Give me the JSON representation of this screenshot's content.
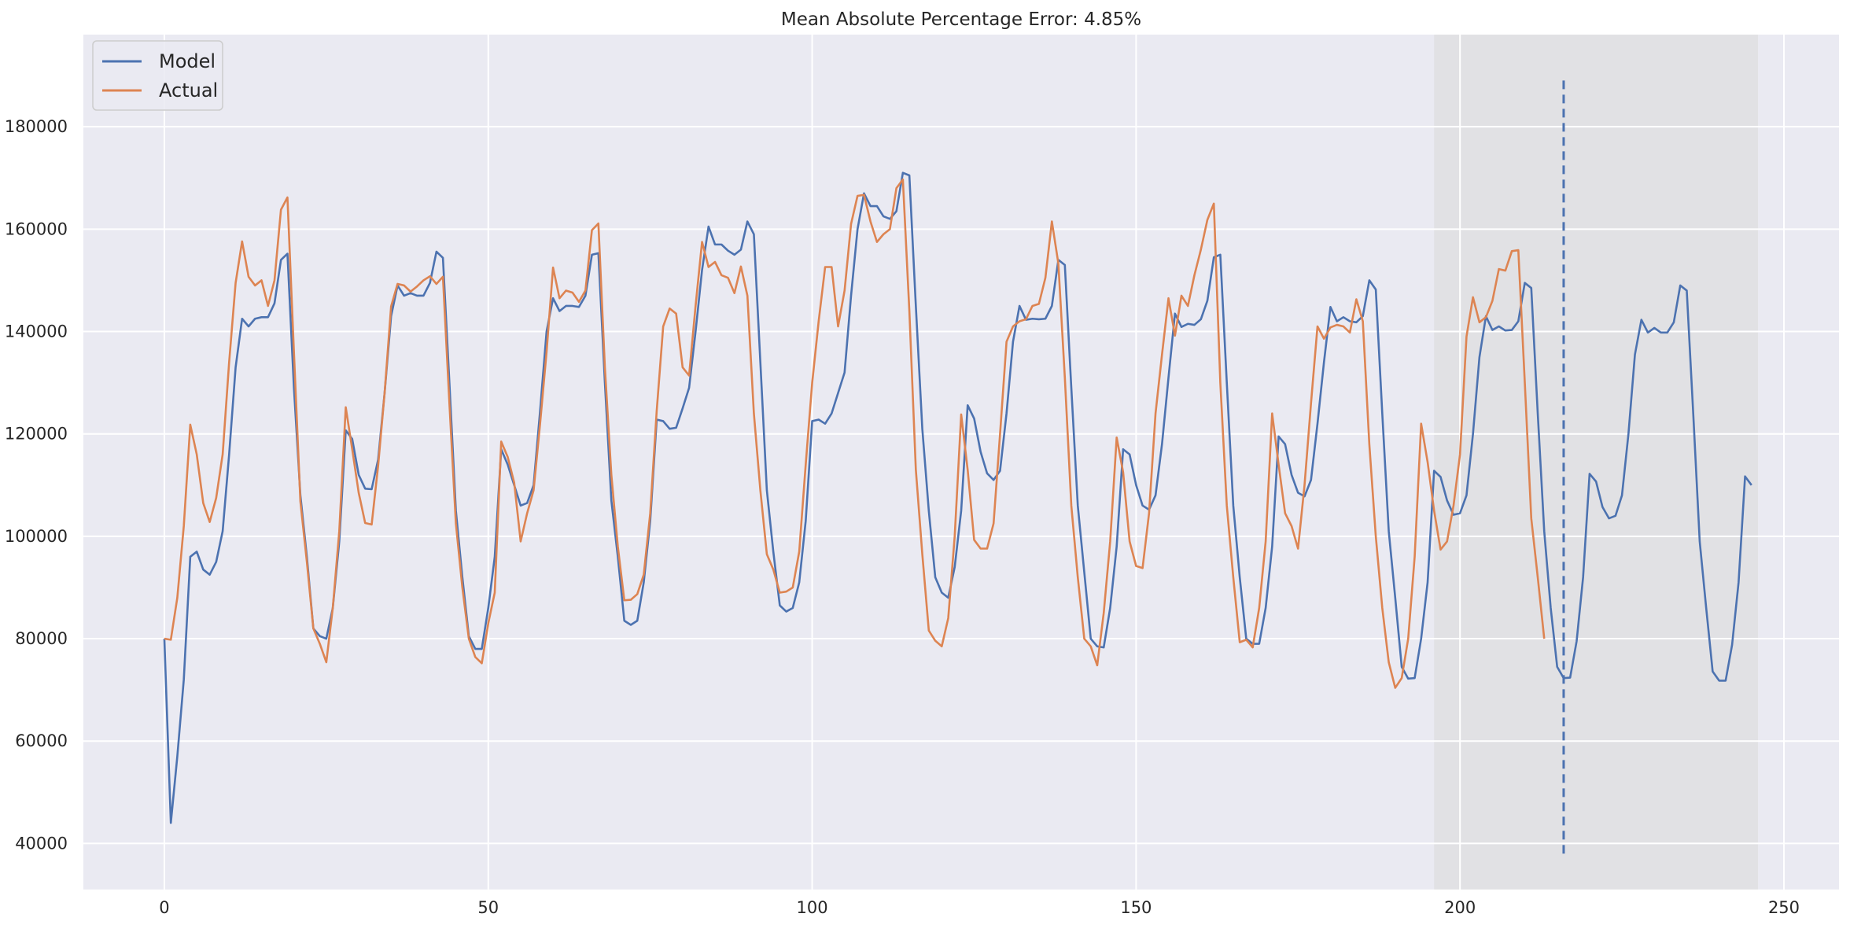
{
  "chart_data": {
    "type": "line",
    "title": "Mean Absolute Percentage Error: 4.85%",
    "xlabel": "",
    "ylabel": "",
    "xlim": [
      -12.5,
      258.5
    ],
    "ylim": [
      31000,
      198000
    ],
    "xticks": [
      0,
      50,
      100,
      150,
      200,
      250
    ],
    "yticks": [
      40000,
      60000,
      80000,
      100000,
      120000,
      140000,
      160000,
      180000
    ],
    "grid": true,
    "legend_position": "top-left",
    "background": "#eaeaf2",
    "shaded_region": {
      "x_start": 196,
      "x_end": 246,
      "color": "#dcdcdc"
    },
    "vertical_marker": {
      "x": 216,
      "y_start": 38000,
      "y_end": 190000,
      "style": "dashed",
      "color": "#4c72b0"
    },
    "series": [
      {
        "name": "Model",
        "color": "#4c72b0",
        "x_start": 0,
        "values": [
          80000,
          44000,
          57000,
          72000,
          96000,
          97000,
          93500,
          92500,
          95000,
          101000,
          116000,
          133000,
          142500,
          141000,
          142500,
          142800,
          142800,
          145500,
          154000,
          155200,
          129000,
          108000,
          96000,
          82000,
          80500,
          80000,
          86000,
          99000,
          120700,
          119000,
          112000,
          109300,
          109200,
          115000,
          128000,
          143000,
          149000,
          147000,
          147500,
          147000,
          147000,
          149500,
          155600,
          154400,
          130000,
          105000,
          92000,
          80500,
          78000,
          78000,
          86000,
          96000,
          117000,
          114000,
          110000,
          106000,
          106500,
          110000,
          124500,
          140000,
          146500,
          144000,
          145000,
          145000,
          144800,
          147000,
          155000,
          155300,
          130000,
          107000,
          96000,
          83500,
          82700,
          83500,
          91000,
          103000,
          122800,
          122500,
          121000,
          121200,
          125000,
          129000,
          140000,
          152000,
          160500,
          157000,
          157000,
          155800,
          155000,
          156000,
          161500,
          159000,
          134000,
          109000,
          97000,
          86500,
          85300,
          86000,
          91000,
          103000,
          122500,
          122800,
          122000,
          124000,
          128000,
          132000,
          147000,
          160000,
          167000,
          164500,
          164500,
          162500,
          162000,
          163500,
          171000,
          170500,
          145000,
          121000,
          105000,
          92000,
          89000,
          88000,
          94000,
          105000,
          125600,
          123000,
          116500,
          112300,
          111000,
          112800,
          124000,
          138000,
          145000,
          142300,
          142500,
          142400,
          142500,
          145000,
          154000,
          153000,
          129000,
          106000,
          93000,
          80000,
          78500,
          78300,
          86000,
          98000,
          117000,
          116000,
          110000,
          106000,
          105200,
          108000,
          118000,
          131000,
          143500,
          140900,
          141500,
          141300,
          142400,
          146000,
          154500,
          155000,
          130000,
          106000,
          92000,
          80000,
          79000,
          79000,
          86000,
          98000,
          119500,
          118000,
          112000,
          108500,
          107800,
          111000,
          122000,
          134000,
          144800,
          142000,
          142800,
          142000,
          141800,
          143000,
          150000,
          148200,
          124000,
          101000,
          88000,
          74500,
          72200,
          72300,
          80000,
          91000,
          112800,
          111600,
          107000,
          104200,
          104500,
          108000,
          120000,
          135000,
          143000,
          140300,
          141000,
          140200,
          140300,
          142000,
          149500,
          148500,
          124000,
          101000,
          86000,
          74500,
          72300,
          72400,
          79500,
          92000,
          112200,
          110700,
          105700,
          103500,
          104000,
          108000,
          120000,
          135500,
          142300,
          139800,
          140700,
          139800,
          139800,
          141800,
          149000,
          148000,
          124000,
          99000,
          86000,
          73600,
          71800,
          71800,
          78800,
          91000,
          111700,
          110000
        ]
      },
      {
        "name": "Actual",
        "color": "#dd8452",
        "x_start": 0,
        "values": [
          80000,
          79800,
          88000,
          102000,
          121800,
          116000,
          106500,
          102800,
          107500,
          116000,
          134000,
          149500,
          157600,
          150700,
          149000,
          150000,
          145000,
          150000,
          163800,
          166200,
          136000,
          106800,
          95000,
          82000,
          79000,
          75400,
          86000,
          101000,
          125200,
          117000,
          108500,
          102600,
          102300,
          113800,
          128000,
          144900,
          149300,
          149000,
          147800,
          148800,
          150000,
          150800,
          149300,
          150700,
          126000,
          102500,
          90000,
          80000,
          76400,
          75200,
          83000,
          89000,
          118500,
          115500,
          110500,
          99000,
          104500,
          109000,
          122000,
          136000,
          152500,
          146500,
          148000,
          147600,
          145800,
          148000,
          159800,
          161100,
          133000,
          112000,
          98000,
          87500,
          87600,
          88700,
          92500,
          104500,
          124500,
          141000,
          144500,
          143500,
          133000,
          131400,
          145000,
          157500,
          152600,
          153600,
          151000,
          150500,
          147500,
          152700,
          147000,
          124000,
          109000,
          96500,
          93500,
          89000,
          89200,
          90000,
          97000,
          114000,
          130000,
          142000,
          152600,
          152600,
          141000,
          148000,
          161000,
          166500,
          166700,
          161500,
          157500,
          159000,
          160000,
          168000,
          169700,
          144000,
          113000,
          96500,
          81600,
          79600,
          78500,
          84000,
          100000,
          123800,
          113000,
          99300,
          97600,
          97600,
          102500,
          120000,
          138000,
          141000,
          142000,
          142400,
          145000,
          145400,
          150500,
          161500,
          153300,
          131000,
          106000,
          92000,
          80000,
          78500,
          74800,
          85000,
          99000,
          119300,
          112500,
          99000,
          94200,
          93800,
          104500,
          124000,
          135500,
          146500,
          139200,
          147000,
          145000,
          151000,
          156000,
          161800,
          165000,
          130000,
          106000,
          92000,
          79300,
          79800,
          78300,
          86000,
          99000,
          124000,
          114000,
          104500,
          102000,
          97600,
          110000,
          126000,
          141000,
          138600,
          140800,
          141300,
          141000,
          139800,
          146300,
          142000,
          118000,
          100000,
          86000,
          75400,
          70400,
          72300,
          80000,
          96000,
          122000,
          114500,
          105000,
          97400,
          99000,
          106000,
          116000,
          139000,
          146700,
          141800,
          142800,
          146000,
          152200,
          151900,
          155700,
          155900,
          130000,
          103500,
          92000,
          80000
        ]
      }
    ]
  }
}
